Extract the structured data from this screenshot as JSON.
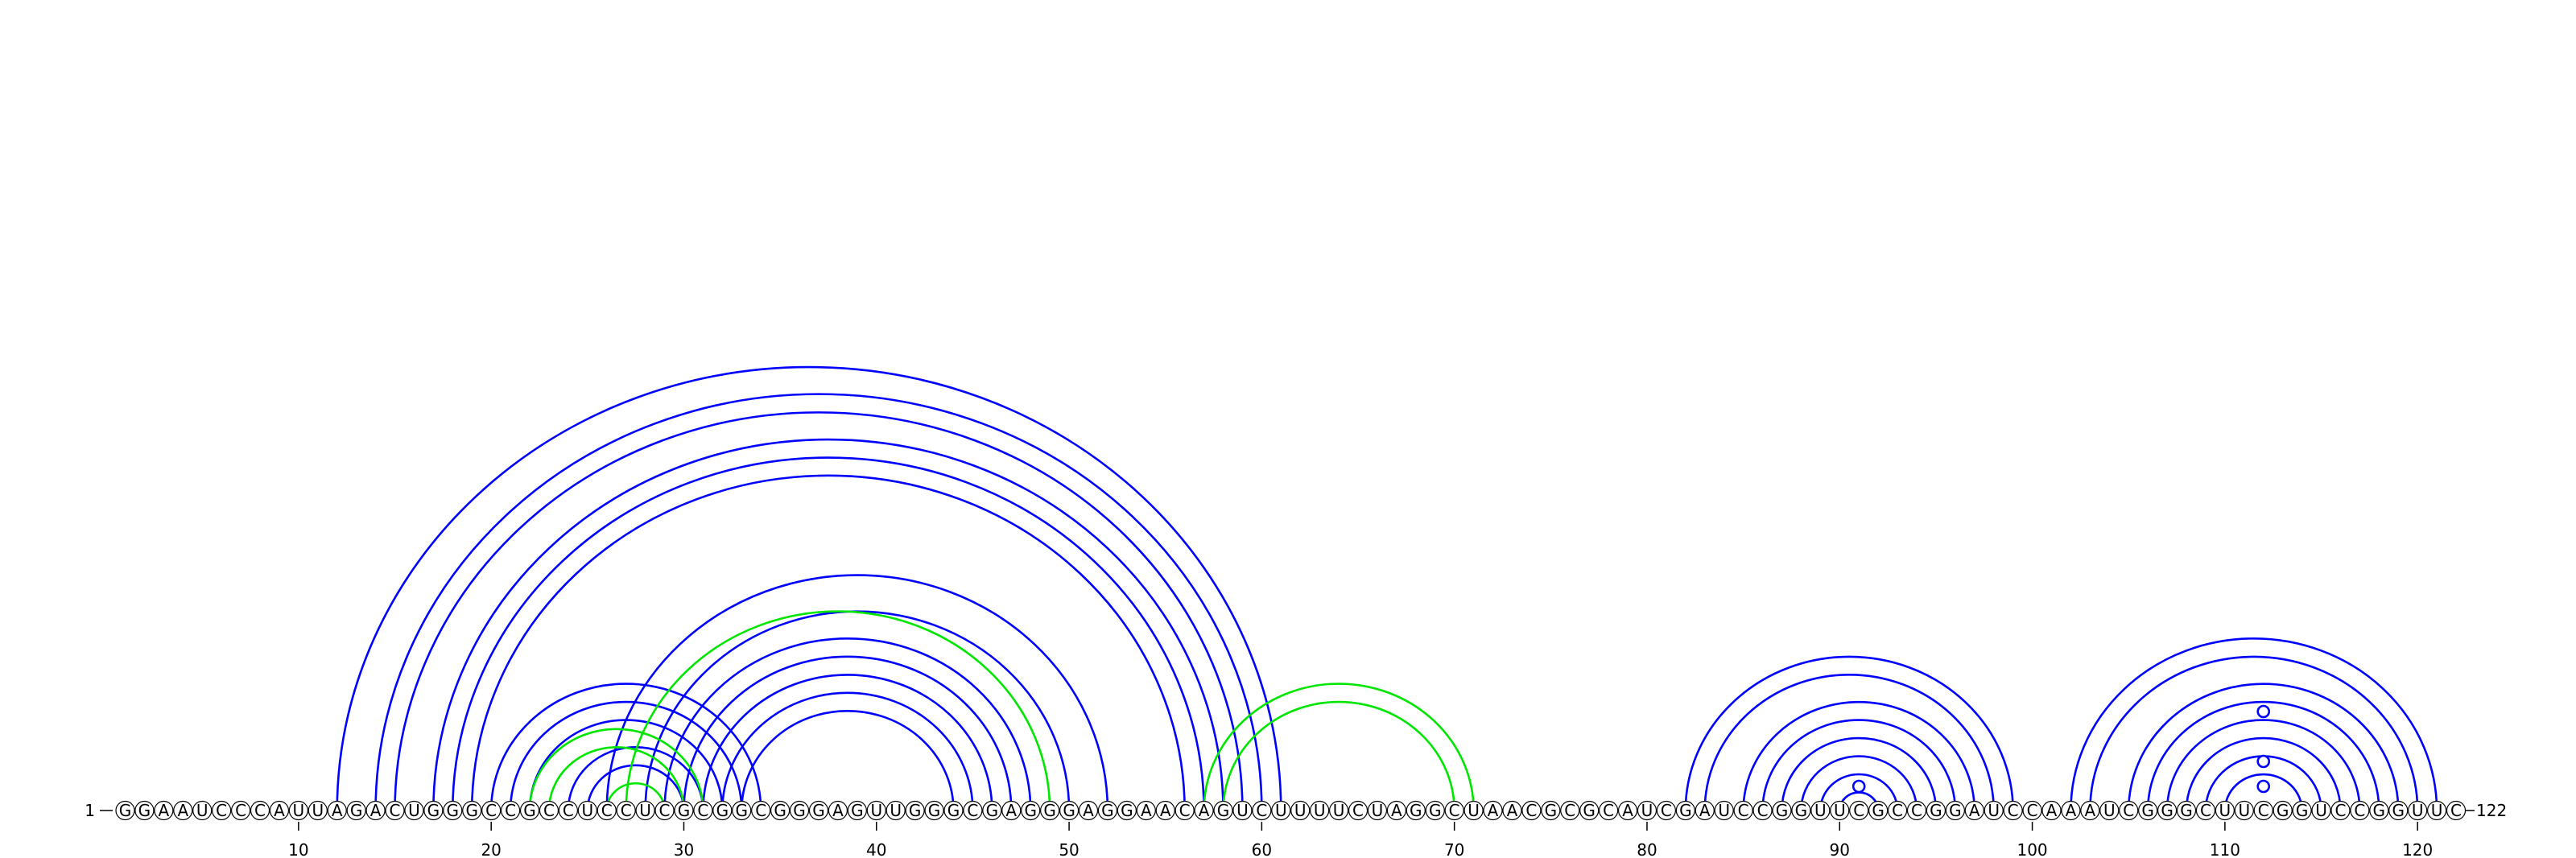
{
  "sequence": "GGAAUCCCAUUAGACUGGGCCGCCUCCUCGCGGCGGGAGUUGGGCGAGGGAGGAACAGUCUUUUCUAGGCUAACGCGCAUCGAUCCGGUUCGCCGGAUCCAAAUCGGGCUUCGGUCCGGUUC",
  "start_label": "1",
  "end_label": "122",
  "ticks": [
    "10",
    "20",
    "30",
    "40",
    "50",
    "60",
    "70",
    "80",
    "90",
    "100",
    "110",
    "120"
  ],
  "colors": {
    "primary_arcs": "#0000ff",
    "secondary_arcs": "#00e600"
  },
  "blue_pairs": [
    [
      12,
      61
    ],
    [
      14,
      60
    ],
    [
      15,
      59
    ],
    [
      17,
      58
    ],
    [
      18,
      57
    ],
    [
      19,
      56
    ],
    [
      20,
      34
    ],
    [
      21,
      33
    ],
    [
      22,
      32
    ],
    [
      24,
      31
    ],
    [
      25,
      30
    ],
    [
      26,
      52
    ],
    [
      28,
      50
    ],
    [
      29,
      48
    ],
    [
      30,
      47
    ],
    [
      31,
      46
    ],
    [
      32,
      45
    ],
    [
      33,
      44
    ],
    [
      82,
      99
    ],
    [
      83,
      98
    ],
    [
      85,
      97
    ],
    [
      86,
      96
    ],
    [
      87,
      95
    ],
    [
      88,
      94
    ],
    [
      89,
      93
    ],
    [
      90,
      92
    ],
    [
      102,
      121
    ],
    [
      103,
      120
    ],
    [
      105,
      119
    ],
    [
      106,
      118
    ],
    [
      107,
      117
    ],
    [
      108,
      116
    ],
    [
      109,
      115
    ],
    [
      110,
      114
    ]
  ],
  "green_pairs": [
    [
      22,
      31
    ],
    [
      23,
      30
    ],
    [
      26,
      29
    ],
    [
      27,
      49
    ],
    [
      57,
      71
    ],
    [
      58,
      70
    ]
  ],
  "unpaired_markers": [
    91,
    112
  ]
}
